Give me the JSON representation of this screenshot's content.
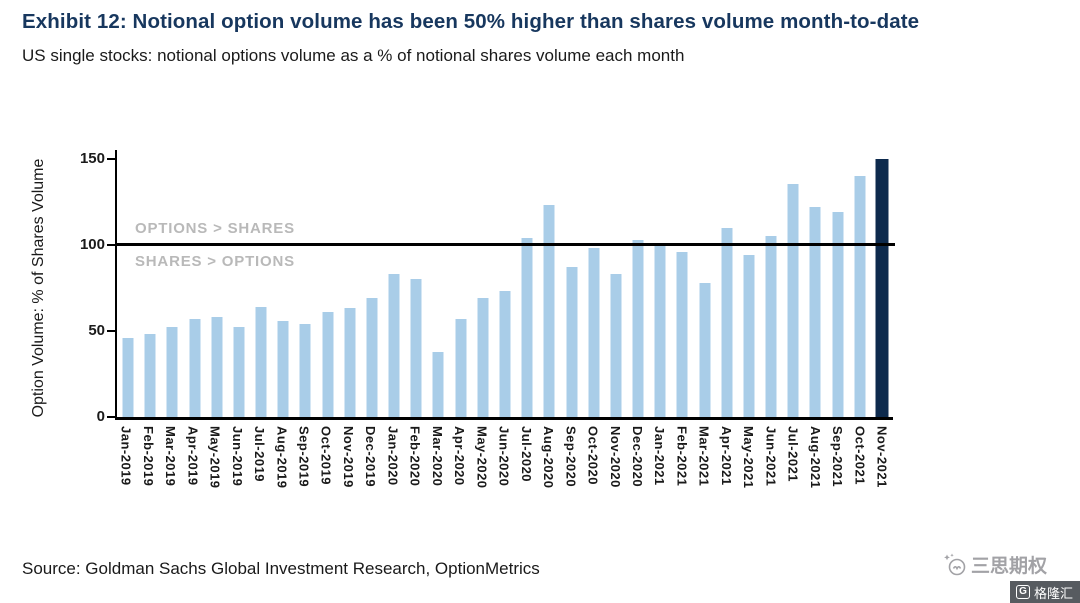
{
  "header": {
    "title": "Exhibit 12: Notional option volume has been 50% higher than shares volume month-to-date",
    "subtitle": "US single stocks: notional options volume as a % of notional shares volume each month"
  },
  "chart_data": {
    "type": "bar",
    "title": "US single stocks: notional options volume as a % of notional shares volume each month",
    "categories": [
      "Jan-2019",
      "Feb-2019",
      "Mar-2019",
      "Apr-2019",
      "May-2019",
      "Jun-2019",
      "Jul-2019",
      "Aug-2019",
      "Sep-2019",
      "Oct-2019",
      "Nov-2019",
      "Dec-2019",
      "Jan-2020",
      "Feb-2020",
      "Mar-2020",
      "Apr-2020",
      "May-2020",
      "Jun-2020",
      "Jul-2020",
      "Aug-2020",
      "Sep-2020",
      "Oct-2020",
      "Nov-2020",
      "Dec-2020",
      "Jan-2021",
      "Feb-2021",
      "Mar-2021",
      "Apr-2021",
      "May-2021",
      "Jun-2021",
      "Jul-2021",
      "Aug-2021",
      "Sep-2021",
      "Oct-2021",
      "Nov-2021"
    ],
    "values": [
      46,
      48,
      52,
      57,
      58,
      52,
      64,
      56,
      54,
      61,
      63,
      69,
      83,
      80,
      38,
      57,
      69,
      73,
      104,
      123,
      87,
      98,
      83,
      103,
      99,
      96,
      78,
      110,
      94,
      105,
      135,
      122,
      119,
      140,
      150
    ],
    "xlabel": "",
    "ylabel": "Option Volume: % of Shares Volume",
    "ylim": [
      0,
      150
    ],
    "yticks": [
      0,
      50,
      100,
      150
    ],
    "grid": false,
    "legend": false,
    "bar_color": "#a9cde8",
    "highlight_index": 34,
    "highlight_color": "#0d2a4d",
    "reference_line": {
      "value": 100,
      "color": "#000000",
      "label_above": "OPTIONS > SHARES",
      "label_below": "SHARES > OPTIONS"
    }
  },
  "footer": {
    "source": "Source: Goldman Sachs Global Investment Research, OptionMetrics",
    "watermark": "三思期权",
    "logo_text": "格隆汇",
    "logo_badge": "G"
  },
  "colors": {
    "title": "#17375e",
    "bar": "#a9cde8",
    "highlight_bar": "#0d2a4d",
    "reference_line": "#000000",
    "zone_label": "#b9b9b9"
  }
}
